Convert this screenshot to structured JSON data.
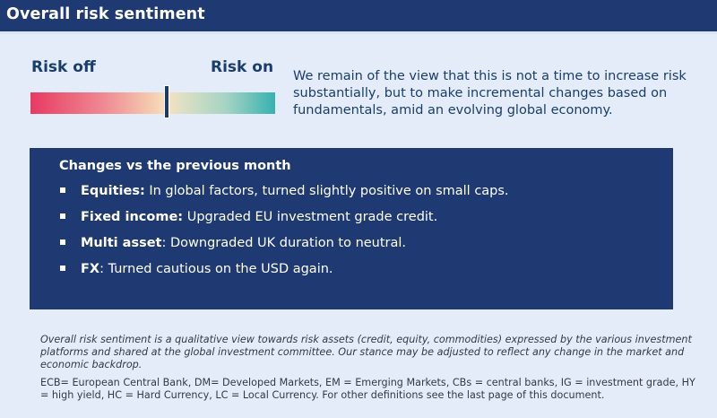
{
  "header": {
    "title": "Overall risk sentiment"
  },
  "gauge": {
    "label_left": "Risk off",
    "label_right": "Risk on",
    "marker_position_pct": 55,
    "colors": {
      "left": "#e83a62",
      "middle": "#fae0c0",
      "right": "#37b2b0",
      "marker": "#1d3965"
    }
  },
  "summary": "We remain of the view that this is not a time to increase risk substantially, but to make incremental changes based on fundamentals, amid an evolving global economy.",
  "changes": {
    "title": "Changes vs the previous month",
    "items": [
      {
        "label": "Equities:",
        "text": " In global factors, turned slightly positive on small caps."
      },
      {
        "label": "Fixed income:",
        "text": " Upgraded EU investment grade credit."
      },
      {
        "label": "Multi asset",
        "text": ": Downgraded UK duration to neutral."
      },
      {
        "label": "FX",
        "text": ": Turned cautious on the USD again."
      }
    ]
  },
  "disclaimer": "Overall risk sentiment is a qualitative view towards risk assets (credit, equity, commodities) expressed by the various investment platforms and shared at the global investment committee. Our stance may be adjusted to reflect any change in the market and economic backdrop.",
  "definitions": "ECB= European Central Bank, DM= Developed Markets, EM = Emerging Markets, CBs = central banks,  IG = investment grade, HY = high yield, HC = Hard Currency, LC = Local Currency. For other definitions see the last page of this document.",
  "colors": {
    "navy": "#1f3a72",
    "background": "#e3ecf8",
    "text_blue": "#1a3d6b"
  }
}
